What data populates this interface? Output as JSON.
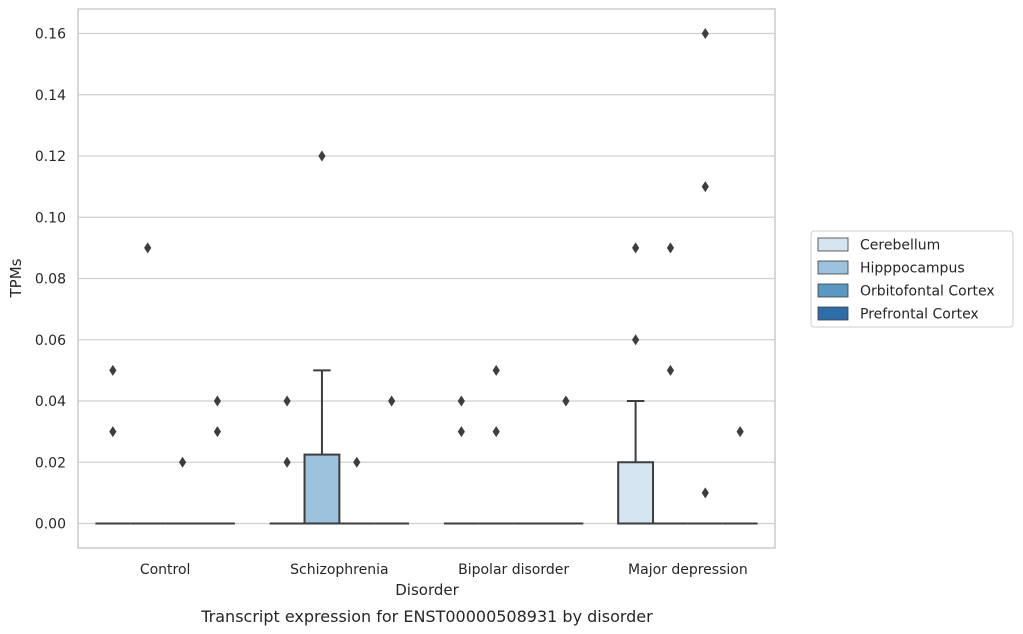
{
  "chart_data": {
    "type": "box",
    "title": "Transcript expression for ENST00000508931 by disorder",
    "xlabel": "Disorder",
    "ylabel": "TPMs",
    "ylim": [
      -0.008,
      0.168
    ],
    "yticks": [
      "0.00",
      "0.02",
      "0.04",
      "0.06",
      "0.08",
      "0.10",
      "0.12",
      "0.14",
      "0.16"
    ],
    "grid": true,
    "legend_placement": "right",
    "categories": [
      "Control",
      "Schizophrenia",
      "Bipolar disorder",
      "Major depression"
    ],
    "series": [
      {
        "name": "Cerebellum",
        "color": "#d4e4f1",
        "boxes": [
          {
            "q1": 0,
            "median": 0,
            "q3": 0,
            "whislo": 0,
            "whishi": 0,
            "fliers": [
              0.05,
              0.03
            ]
          },
          {
            "q1": 0,
            "median": 0,
            "q3": 0,
            "whislo": 0,
            "whishi": 0,
            "fliers": [
              0.04,
              0.02
            ]
          },
          {
            "q1": 0,
            "median": 0,
            "q3": 0,
            "whislo": 0,
            "whishi": 0,
            "fliers": [
              0.04,
              0.03
            ]
          },
          {
            "q1": 0,
            "median": 0,
            "q3": 0.02,
            "whislo": 0,
            "whishi": 0.04,
            "fliers": [
              0.09,
              0.06
            ]
          }
        ]
      },
      {
        "name": "Hipppocampus",
        "color": "#9cc1dc",
        "boxes": [
          {
            "q1": 0,
            "median": 0,
            "q3": 0,
            "whislo": 0,
            "whishi": 0,
            "fliers": [
              0.09
            ]
          },
          {
            "q1": 0,
            "median": 0,
            "q3": 0.0225,
            "whislo": 0,
            "whishi": 0.05,
            "fliers": [
              0.12
            ]
          },
          {
            "q1": 0,
            "median": 0,
            "q3": 0,
            "whislo": 0,
            "whishi": 0,
            "fliers": [
              0.05,
              0.03
            ]
          },
          {
            "q1": 0,
            "median": 0,
            "q3": 0,
            "whislo": 0,
            "whishi": 0,
            "fliers": [
              0.09,
              0.05
            ]
          }
        ]
      },
      {
        "name": "Orbitofontal Cortex",
        "color": "#5a98c4",
        "boxes": [
          {
            "q1": 0,
            "median": 0,
            "q3": 0,
            "whislo": 0,
            "whishi": 0,
            "fliers": [
              0.02
            ]
          },
          {
            "q1": 0,
            "median": 0,
            "q3": 0,
            "whislo": 0,
            "whishi": 0,
            "fliers": [
              0.02
            ]
          },
          {
            "q1": 0,
            "median": 0,
            "q3": 0,
            "whislo": 0,
            "whishi": 0,
            "fliers": []
          },
          {
            "q1": 0,
            "median": 0,
            "q3": 0,
            "whislo": 0,
            "whishi": 0,
            "fliers": [
              0.16,
              0.11,
              0.01
            ]
          }
        ]
      },
      {
        "name": "Prefrontal Cortex",
        "color": "#2e6ea8",
        "boxes": [
          {
            "q1": 0,
            "median": 0,
            "q3": 0,
            "whislo": 0,
            "whishi": 0,
            "fliers": [
              0.04,
              0.03
            ]
          },
          {
            "q1": 0,
            "median": 0,
            "q3": 0,
            "whislo": 0,
            "whishi": 0,
            "fliers": [
              0.04
            ]
          },
          {
            "q1": 0,
            "median": 0,
            "q3": 0,
            "whislo": 0,
            "whishi": 0,
            "fliers": [
              0.04
            ]
          },
          {
            "q1": 0,
            "median": 0,
            "q3": 0,
            "whislo": 0,
            "whishi": 0,
            "fliers": [
              0.03
            ]
          }
        ]
      }
    ]
  }
}
